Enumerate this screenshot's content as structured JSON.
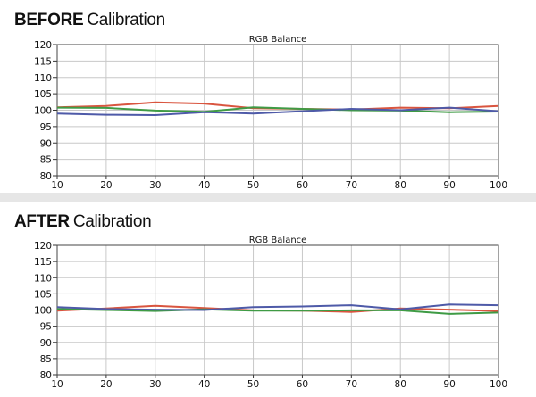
{
  "panels": [
    {
      "heading_strong": "BEFORE",
      "heading_light": "Calibration"
    },
    {
      "heading_strong": "AFTER",
      "heading_light": "Calibration"
    }
  ],
  "chart_data": [
    {
      "type": "line",
      "title": "RGB Balance",
      "xlabel": "",
      "ylabel": "",
      "x": [
        10,
        20,
        30,
        40,
        50,
        60,
        70,
        80,
        90,
        100
      ],
      "xlim": [
        10,
        100
      ],
      "ylim": [
        80,
        120
      ],
      "yticks": [
        80,
        85,
        90,
        95,
        100,
        105,
        110,
        115,
        120
      ],
      "grid": true,
      "series": [
        {
          "color": "#d9553f",
          "values": [
            100.9,
            101.3,
            102.4,
            102.0,
            100.6,
            100.4,
            100.2,
            100.8,
            100.6,
            101.3
          ]
        },
        {
          "color": "#3f9b45",
          "values": [
            100.8,
            100.7,
            99.9,
            99.5,
            100.9,
            100.4,
            100.0,
            99.9,
            99.4,
            99.6
          ]
        },
        {
          "color": "#4e5aa8",
          "values": [
            99.0,
            98.6,
            98.5,
            99.4,
            99.0,
            99.7,
            100.4,
            100.0,
            100.8,
            99.7
          ]
        }
      ]
    },
    {
      "type": "line",
      "title": "RGB Balance",
      "xlabel": "",
      "ylabel": "",
      "x": [
        10,
        20,
        30,
        40,
        50,
        60,
        70,
        80,
        90,
        100
      ],
      "xlim": [
        10,
        100
      ],
      "ylim": [
        80,
        120
      ],
      "yticks": [
        80,
        85,
        90,
        95,
        100,
        105,
        110,
        115,
        120
      ],
      "grid": true,
      "series": [
        {
          "color": "#d9553f",
          "values": [
            99.8,
            100.5,
            101.3,
            100.6,
            99.9,
            99.8,
            99.4,
            100.5,
            100.1,
            99.7
          ]
        },
        {
          "color": "#3f9b45",
          "values": [
            100.3,
            100.0,
            99.7,
            100.2,
            99.8,
            99.8,
            99.9,
            99.9,
            98.8,
            99.2
          ]
        },
        {
          "color": "#4e5aa8",
          "values": [
            100.9,
            100.3,
            100.1,
            100.0,
            100.9,
            101.1,
            101.5,
            100.2,
            101.7,
            101.5
          ]
        }
      ]
    }
  ]
}
